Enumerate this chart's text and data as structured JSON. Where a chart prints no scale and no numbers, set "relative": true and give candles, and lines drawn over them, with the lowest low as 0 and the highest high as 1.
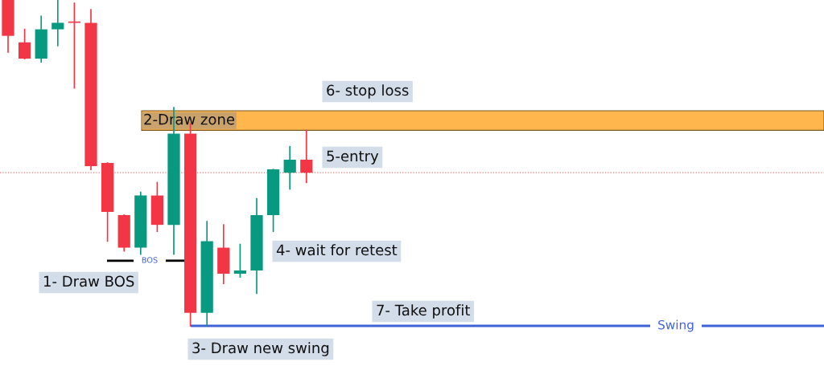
{
  "chart_data": {
    "type": "candlestick",
    "relative": true,
    "categories": [
      null,
      null,
      null,
      null,
      null,
      null,
      null,
      null,
      null,
      null,
      null,
      null,
      null,
      null,
      null,
      null,
      null,
      null,
      null
    ],
    "ohlc": [
      [
        1.0,
        1.0,
        0.84,
        0.89
      ],
      [
        0.87,
        0.91,
        0.82,
        0.82
      ],
      [
        0.82,
        0.95,
        0.81,
        0.91
      ],
      [
        0.91,
        1.0,
        0.86,
        0.93
      ],
      [
        0.93,
        0.99,
        0.73,
        0.93
      ],
      [
        0.93,
        0.97,
        0.48,
        0.49
      ],
      [
        0.5,
        0.5,
        0.26,
        0.35
      ],
      [
        0.34,
        0.34,
        0.23,
        0.24
      ],
      [
        0.24,
        0.41,
        0.22,
        0.4
      ],
      [
        0.4,
        0.44,
        0.29,
        0.31
      ],
      [
        0.31,
        0.67,
        0.22,
        0.59
      ],
      [
        0.59,
        0.62,
        0.0,
        0.04
      ],
      [
        0.04,
        0.32,
        0.0,
        0.26
      ],
      [
        0.24,
        0.31,
        0.13,
        0.16
      ],
      [
        0.16,
        0.25,
        0.15,
        0.17
      ],
      [
        0.17,
        0.39,
        0.1,
        0.34
      ],
      [
        0.34,
        0.48,
        0.29,
        0.48
      ],
      [
        0.47,
        0.55,
        0.42,
        0.51
      ],
      [
        0.51,
        0.6,
        0.44,
        0.47
      ]
    ],
    "colors": [
      "#f23645",
      "#f23645",
      "#089981",
      "#089981",
      "#f23645",
      "#f23645",
      "#f23645",
      "#f23645",
      "#089981",
      "#f23645",
      "#089981",
      "#f23645",
      "#089981",
      "#f23645",
      "#089981",
      "#089981",
      "#089981",
      "#089981",
      "#f23645"
    ],
    "bands": [
      {
        "axis": "y",
        "from": 0.6,
        "to": 0.66,
        "label": "2-Draw zone",
        "color": "#ffb74d"
      }
    ],
    "ref_lines": [
      {
        "axis": "y",
        "value": 0.0,
        "label": "Swing",
        "color": "#3f63d6",
        "line_style": "solid"
      },
      {
        "axis": "y",
        "value": 0.2,
        "label": "BOS",
        "color": "#000000",
        "line_style": "solid"
      },
      {
        "axis": "y",
        "value": 0.47,
        "label": null,
        "color": "#e57373",
        "line_style": "dotted"
      }
    ],
    "annotations": [
      "6- stop loss",
      "5-entry",
      "4- wait for retest",
      "1- Draw BOS",
      "7- Take profit",
      "3- Draw new swing"
    ]
  }
}
